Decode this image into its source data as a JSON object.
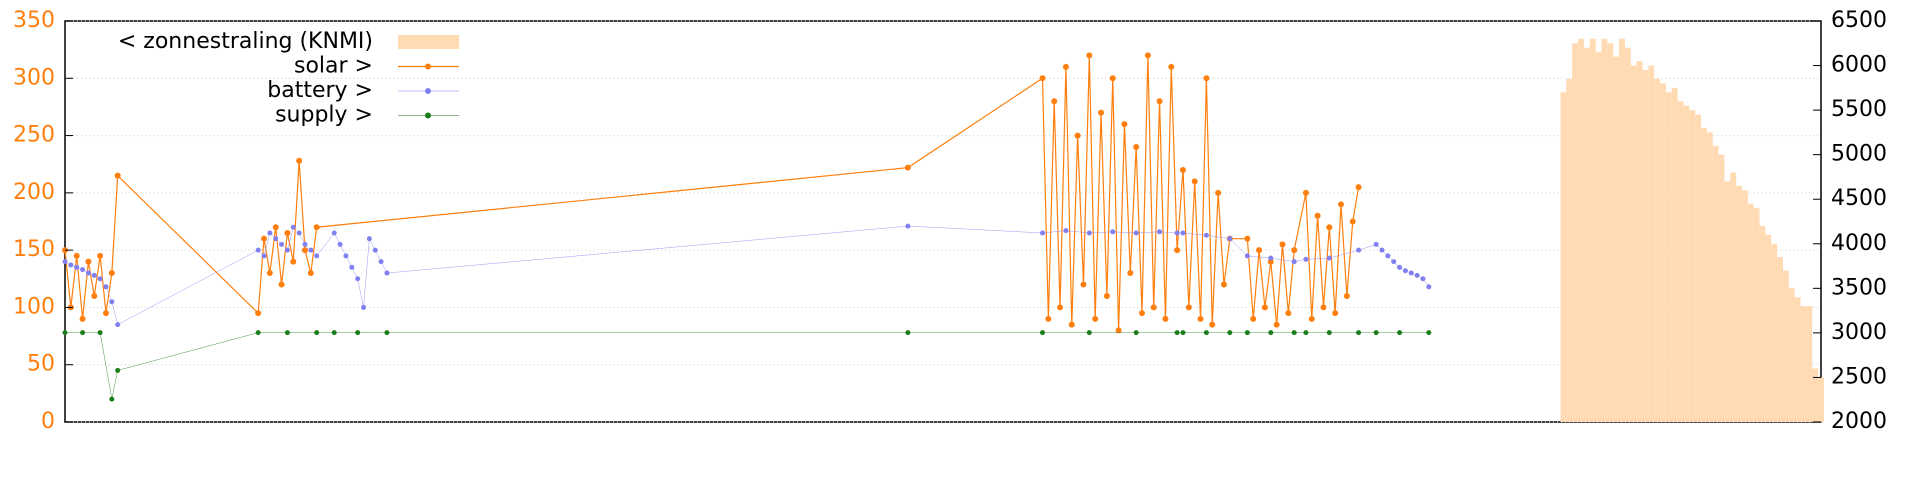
{
  "chart_data": {
    "type": "line",
    "xlim": [
      0,
      300
    ],
    "ylim": [
      0,
      350
    ],
    "yticks": [
      0,
      50,
      100,
      150,
      200,
      250,
      300,
      350
    ],
    "y2lim": [
      2000,
      6500
    ],
    "y2ticks": [
      2000,
      2500,
      3000,
      3500,
      4000,
      4500,
      5000,
      5500,
      6000,
      6500
    ],
    "grid": true,
    "legend": "top-left",
    "series": [
      {
        "name": "< zonnestraling (KNMI)",
        "color": "#ffdab3",
        "style": "boxes",
        "axis": "y2",
        "x": [
          256,
          257,
          258,
          259,
          260,
          261,
          262,
          263,
          264,
          265,
          266,
          267,
          268,
          269,
          270,
          271,
          272,
          273,
          274,
          275,
          276,
          277,
          278,
          279,
          280,
          281,
          282,
          283,
          284,
          285,
          286,
          287,
          288,
          289,
          290,
          291,
          292,
          293,
          294,
          295,
          296,
          297,
          298,
          299,
          300
        ],
        "values": [
          5700,
          5850,
          6250,
          6300,
          6200,
          6300,
          6150,
          6300,
          6250,
          6100,
          6300,
          6200,
          6000,
          6050,
          5950,
          6000,
          5850,
          5800,
          5700,
          5750,
          5600,
          5550,
          5500,
          5450,
          5300,
          5250,
          5100,
          5000,
          4700,
          4800,
          4650,
          4600,
          4450,
          4400,
          4200,
          4100,
          4000,
          3850,
          3700,
          3500,
          3400,
          3300,
          3300,
          2600,
          2500
        ]
      },
      {
        "name": "solar >",
        "color": "#ff7f0e",
        "style": "linespoints",
        "x": [
          0,
          1,
          2,
          3,
          4,
          5,
          6,
          7,
          8,
          9,
          33,
          34,
          35,
          36,
          37,
          38,
          39,
          40,
          41,
          42,
          43,
          144,
          167,
          168,
          169,
          170,
          171,
          172,
          173,
          174,
          175,
          176,
          177,
          178,
          179,
          180,
          181,
          182,
          183,
          184,
          185,
          186,
          187,
          188,
          189,
          190,
          191,
          192,
          193,
          194,
          195,
          196,
          197,
          198,
          199,
          202,
          203,
          204,
          205,
          206,
          207,
          208,
          209,
          210,
          212,
          213,
          214,
          215,
          216,
          217,
          218,
          219,
          220,
          221
        ],
        "values": [
          150,
          100,
          145,
          90,
          140,
          110,
          145,
          95,
          130,
          215,
          95,
          160,
          130,
          170,
          120,
          165,
          140,
          228,
          150,
          130,
          170,
          222,
          300,
          90,
          280,
          100,
          310,
          85,
          250,
          120,
          320,
          90,
          270,
          110,
          300,
          80,
          260,
          130,
          240,
          95,
          320,
          100,
          280,
          90,
          310,
          150,
          220,
          100,
          210,
          90,
          300,
          85,
          200,
          120,
          160,
          160,
          90,
          150,
          100,
          140,
          85,
          155,
          95,
          150,
          200,
          90,
          180,
          100,
          170,
          95,
          190,
          110,
          175,
          205
        ]
      },
      {
        "name": "battery >",
        "color": "#8080f0",
        "style": "points",
        "x": [
          0,
          1,
          2,
          3,
          4,
          5,
          6,
          7,
          8,
          9,
          33,
          34,
          35,
          36,
          37,
          38,
          39,
          40,
          41,
          42,
          43,
          46,
          47,
          48,
          49,
          50,
          51,
          52,
          53,
          54,
          55,
          144,
          167,
          171,
          175,
          179,
          183,
          187,
          190,
          191,
          195,
          199,
          202,
          206,
          210,
          212,
          216,
          221,
          224,
          225,
          226,
          227,
          228,
          229,
          230,
          231,
          232,
          233
        ],
        "values": [
          140,
          137,
          135,
          133,
          130,
          128,
          125,
          118,
          105,
          85,
          150,
          145,
          165,
          160,
          155,
          150,
          170,
          165,
          155,
          150,
          145,
          165,
          155,
          145,
          135,
          125,
          100,
          160,
          150,
          140,
          130,
          171,
          165,
          167,
          165,
          166,
          165,
          166,
          165,
          165,
          163,
          160,
          145,
          143,
          140,
          142,
          143,
          150,
          155,
          150,
          145,
          140,
          135,
          132,
          130,
          128,
          125,
          118
        ]
      },
      {
        "name": "supply >",
        "color": "#1a7f1a",
        "style": "points",
        "x": [
          0,
          3,
          6,
          8,
          9,
          33,
          38,
          43,
          46,
          50,
          55,
          144,
          167,
          175,
          183,
          190,
          191,
          195,
          199,
          202,
          206,
          210,
          212,
          216,
          221,
          224,
          228,
          233
        ],
        "values": [
          78,
          78,
          78,
          20,
          45,
          78,
          78,
          78,
          78,
          78,
          78,
          78,
          78,
          78,
          78,
          78,
          78,
          78,
          78,
          78,
          78,
          78,
          78,
          78,
          78,
          78,
          78,
          78
        ]
      }
    ]
  }
}
